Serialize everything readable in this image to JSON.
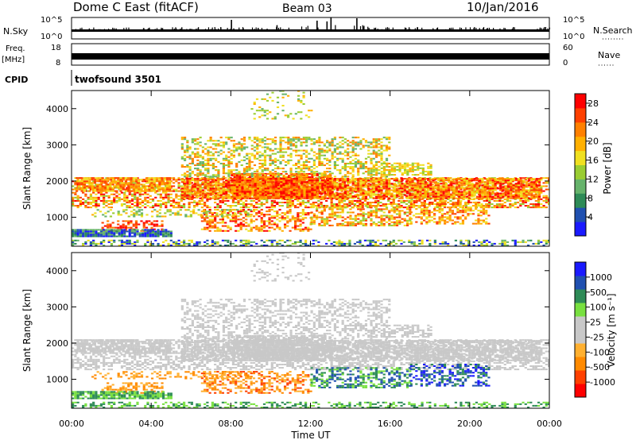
{
  "header": {
    "station": "Dome C East (fitACF)",
    "beam": "Beam 03",
    "date": "10/Jan/2016"
  },
  "params": {
    "nsky_label": "N.Sky",
    "nsky_ticks": [
      "10^5",
      "10^0"
    ],
    "nsearch_label": "N.Search",
    "nsearch_ticks": [
      "10^5",
      "10^0"
    ],
    "freq_label": "Freq.",
    "freq_unit": "[MHz]",
    "freq_ticks": [
      "18",
      "8"
    ],
    "nave_label": "Nave",
    "nave_ticks": [
      "60",
      "0"
    ],
    "cpid_label": "CPID",
    "cpid_value": "twofsound 3501"
  },
  "colors": {
    "power_scale": [
      "#1a1aff",
      "#2050b0",
      "#2e8b57",
      "#66b36b",
      "#9acd32",
      "#f0e020",
      "#ffb000",
      "#ff8000",
      "#ff4000",
      "#ff0000"
    ],
    "velocity_scale": [
      "#ff0000",
      "#ff4000",
      "#ff8a00",
      "#ffb030",
      "#c8c8c8",
      "#c8c8c8",
      "#78e040",
      "#2e8b57",
      "#2050b0",
      "#1a1aff"
    ]
  },
  "chart_data": [
    {
      "type": "heatmap",
      "panel": "power",
      "ylabel": "Slant Range [km]",
      "y_ticks": [
        "1000",
        "2000",
        "3000",
        "4000"
      ],
      "y_values": [
        1000,
        2000,
        3000,
        4000
      ],
      "ylim": [
        200,
        4500
      ],
      "colorbar_label": "Power [dB]",
      "colorbar_ticks": [
        "4",
        "8",
        "12",
        "16",
        "20",
        "24",
        "28"
      ],
      "colorbar_values": [
        4,
        8,
        12,
        16,
        20,
        24,
        28
      ],
      "colorbar_range": [
        0,
        30
      ]
    },
    {
      "type": "heatmap",
      "panel": "velocity",
      "ylabel": "Slant Range [km]",
      "y_ticks": [
        "1000",
        "2000",
        "3000",
        "4000"
      ],
      "y_values": [
        1000,
        2000,
        3000,
        4000
      ],
      "ylim": [
        200,
        4500
      ],
      "colorbar_label": "Velocity [m s⁻¹]",
      "colorbar_ticks": [
        "1000",
        "500",
        "100",
        "25",
        "-25",
        "-100",
        "-500",
        "-1000"
      ],
      "xlabel": "Time UT",
      "x_ticks": [
        "00:00",
        "04:00",
        "08:00",
        "12:00",
        "16:00",
        "20:00",
        "00:00"
      ],
      "x_hours": [
        0,
        4,
        8,
        12,
        16,
        20,
        24
      ],
      "xlim": [
        0,
        24
      ]
    }
  ]
}
